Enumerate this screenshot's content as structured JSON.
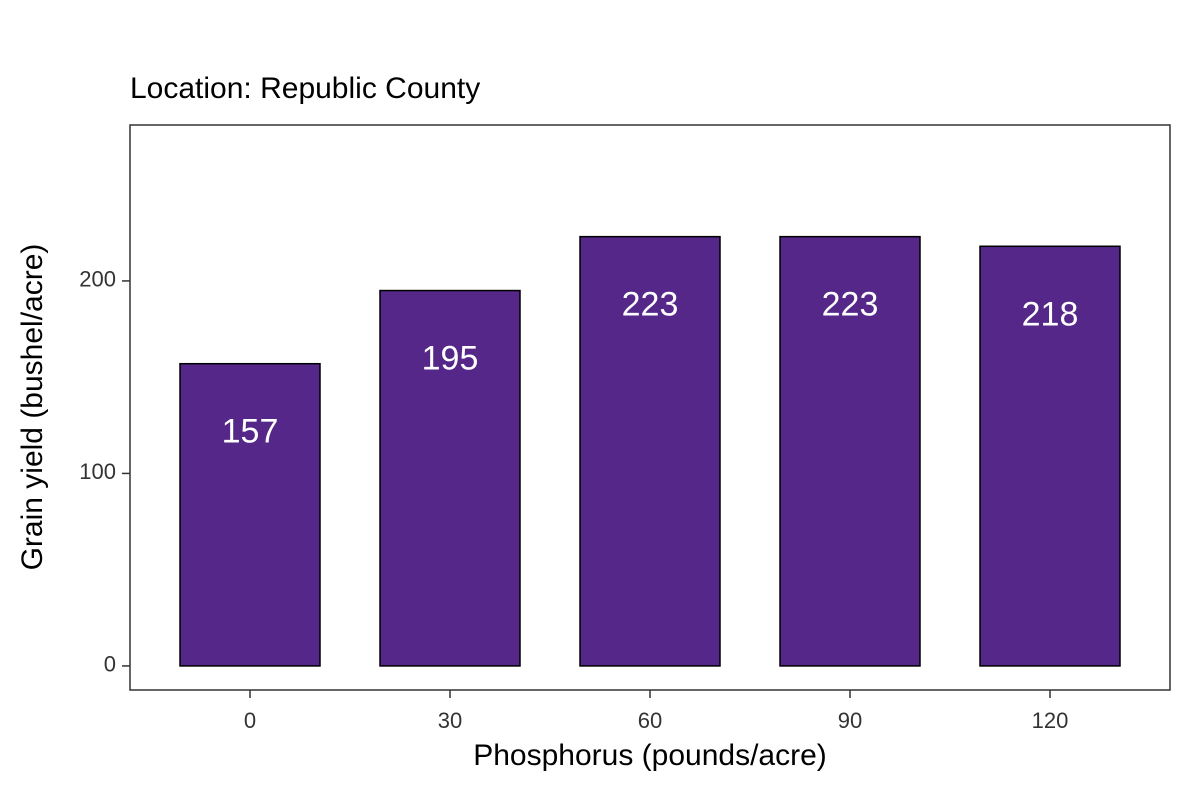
{
  "chart_data": {
    "type": "bar",
    "title": "Location: Republic County",
    "x_label": "Phosphorus (pounds/acre)",
    "y_label": "Grain yield (bushel/acre)",
    "categories": [
      "0",
      "30",
      "60",
      "90",
      "120"
    ],
    "values": [
      157,
      195,
      223,
      223,
      218
    ],
    "color": "#542788",
    "ylim": [
      -12.5,
      281
    ],
    "yticks": [
      0,
      100,
      200
    ],
    "grid": false,
    "data_labels": true
  }
}
